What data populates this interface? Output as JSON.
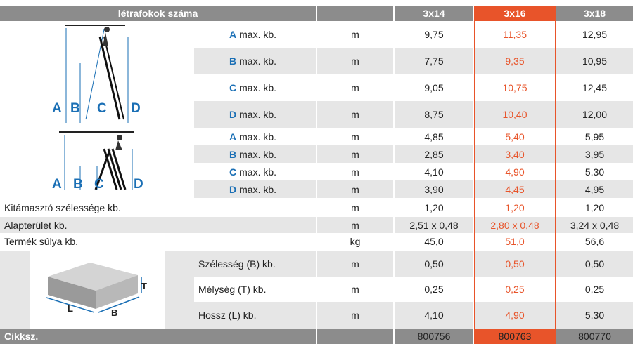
{
  "header": {
    "title": "létrafokok száma",
    "cols": [
      "3x14",
      "3x16",
      "3x18"
    ]
  },
  "colors": {
    "accent": "#e8542a",
    "header_bg": "#8c8c8c",
    "band": "#e6e6e6",
    "letter": "#1a6fb5"
  },
  "diagram_labels": {
    "a": "A",
    "b": "B",
    "c": "C",
    "d": "D"
  },
  "box_labels": {
    "t": "T",
    "l": "L",
    "b": "B"
  },
  "ladder_rows": [
    {
      "letter": "A",
      "label": "max. kb.",
      "unit": "m",
      "v": [
        "9,75",
        "11,35",
        "12,95"
      ]
    },
    {
      "letter": "B",
      "label": "max. kb.",
      "unit": "m",
      "v": [
        "7,75",
        "9,35",
        "10,95"
      ]
    },
    {
      "letter": "C",
      "label": "max. kb.",
      "unit": "m",
      "v": [
        "9,05",
        "10,75",
        "12,45"
      ]
    },
    {
      "letter": "D",
      "label": "max. kb.",
      "unit": "m",
      "v": [
        "8,75",
        "10,40",
        "12,00"
      ]
    },
    {
      "letter": "A",
      "label": "max. kb.",
      "unit": "m",
      "v": [
        "4,85",
        "5,40",
        "5,95"
      ]
    },
    {
      "letter": "B",
      "label": "max. kb.",
      "unit": "m",
      "v": [
        "2,85",
        "3,40",
        "3,95"
      ]
    },
    {
      "letter": "C",
      "label": "max. kb.",
      "unit": "m",
      "v": [
        "4,10",
        "4,90",
        "5,30"
      ]
    },
    {
      "letter": "D",
      "label": "max. kb.",
      "unit": "m",
      "v": [
        "3,90",
        "4,45",
        "4,95"
      ]
    }
  ],
  "spec_rows": [
    {
      "label": "Kitámasztó szélessége kb.",
      "unit": "m",
      "v": [
        "1,20",
        "1,20",
        "1,20"
      ]
    },
    {
      "label": "Alapterület kb.",
      "unit": "m",
      "v": [
        "2,51 x 0,48",
        "2,80 x 0,48",
        "3,24 x 0,48"
      ]
    },
    {
      "label": "Termék súlya kb.",
      "unit": "kg",
      "v": [
        "45,0",
        "51,0",
        "56,6"
      ]
    }
  ],
  "pack_rows": [
    {
      "label": "Szélesség (B) kb.",
      "unit": "m",
      "v": [
        "0,50",
        "0,50",
        "0,50"
      ]
    },
    {
      "label": "Mélység (T) kb.",
      "unit": "m",
      "v": [
        "0,25",
        "0,25",
        "0,25"
      ]
    },
    {
      "label": "Hossz (L) kb.",
      "unit": "m",
      "v": [
        "4,10",
        "4,90",
        "5,30"
      ]
    }
  ],
  "footer": {
    "label": "Cikksz.",
    "codes": [
      "800756",
      "800763",
      "800770"
    ]
  }
}
